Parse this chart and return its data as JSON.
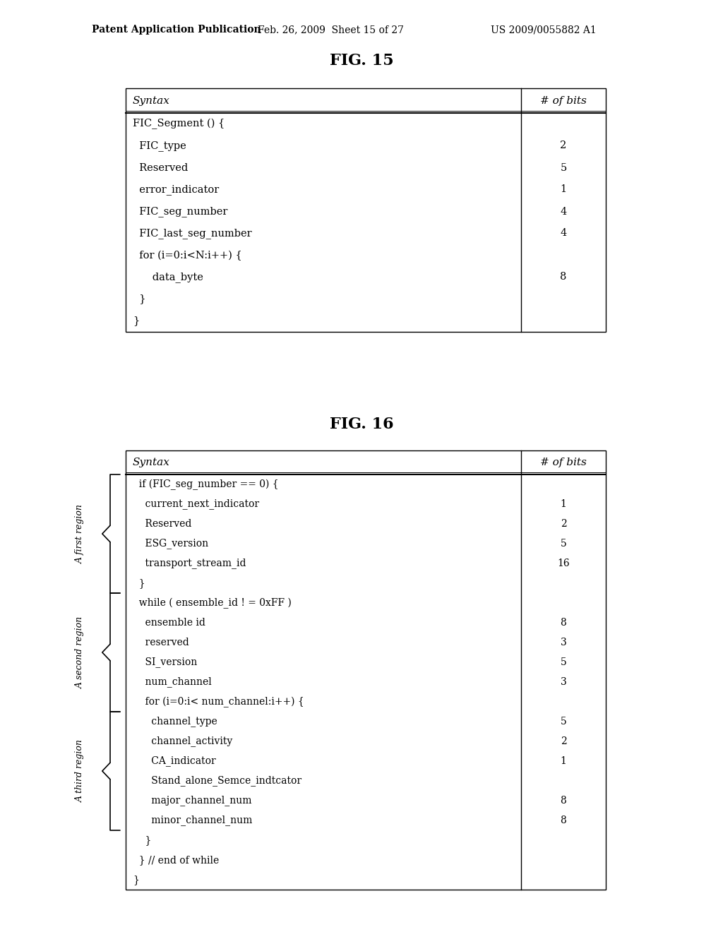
{
  "background_color": "#ffffff",
  "header_text": "Patent Application Publication",
  "header_date": "Feb. 26, 2009  Sheet 15 of 27",
  "header_patent": "US 2009/0055882 A1",
  "fig15_title": "FIG. 15",
  "fig16_title": "FIG. 16",
  "fig15_col_headers": [
    "Syntax",
    "# of bits"
  ],
  "fig15_rows": [
    [
      "FIC_Segment () {",
      ""
    ],
    [
      "  FIC_type",
      "2"
    ],
    [
      "  Reserved",
      "5"
    ],
    [
      "  error_indicator",
      "1"
    ],
    [
      "  FIC_seg_number",
      "4"
    ],
    [
      "  FIC_last_seg_number",
      "4"
    ],
    [
      "  for (i=0:i<N:i++) {",
      ""
    ],
    [
      "      data_byte",
      "8"
    ],
    [
      "  }",
      ""
    ],
    [
      "}",
      ""
    ]
  ],
  "fig16_col_headers": [
    "Syntax",
    "# of bits"
  ],
  "fig16_rows": [
    [
      "  if (FIC_seg_number == 0) {",
      ""
    ],
    [
      "    current_next_indicator",
      "1"
    ],
    [
      "    Reserved",
      "2"
    ],
    [
      "    ESG_version",
      "5"
    ],
    [
      "    transport_stream_id",
      "16"
    ],
    [
      "  }",
      ""
    ],
    [
      "  while ( ensemble_id ! = 0xFF )",
      ""
    ],
    [
      "    ensemble id",
      "8"
    ],
    [
      "    reserved",
      "3"
    ],
    [
      "    SI_version",
      "5"
    ],
    [
      "    num_channel",
      "3"
    ],
    [
      "    for (i=0:i< num_channel:i++) {",
      ""
    ],
    [
      "      channel_type",
      "5"
    ],
    [
      "      channel_activity",
      "2"
    ],
    [
      "      CA_indicator",
      "1"
    ],
    [
      "      Stand_alone_Semce_indtcator",
      ""
    ],
    [
      "      major_channel_num",
      "8"
    ],
    [
      "      minor_channel_num",
      "8"
    ],
    [
      "    }",
      ""
    ],
    [
      "  } // end of while",
      ""
    ],
    [
      "}",
      ""
    ]
  ],
  "first_region_label": "A first region",
  "second_region_label": "A second region",
  "third_region_label": "A third region"
}
